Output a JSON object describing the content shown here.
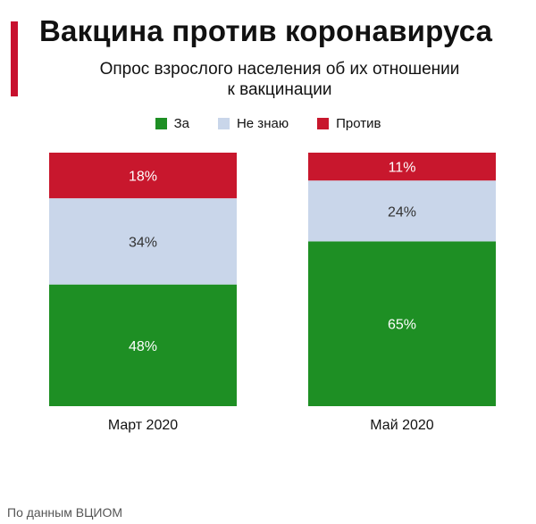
{
  "title": "Вакцина против коронавируса",
  "subtitle_lines": [
    "Опрос взрослого населения об их отношении",
    "к вакцинации"
  ],
  "legend": [
    {
      "label": "За",
      "color": "#1e8f24"
    },
    {
      "label": "Не знаю",
      "color": "#c9d6ea"
    },
    {
      "label": "Против",
      "color": "#c8172d"
    }
  ],
  "source": "По данным ВЦИОМ",
  "chart_data": {
    "type": "bar",
    "stacked": true,
    "categories": [
      "Март 2020",
      "Май 2020"
    ],
    "series": [
      {
        "name": "За",
        "values": [
          48,
          65
        ],
        "labels": [
          "48%",
          "65%"
        ],
        "color": "#1e8f24"
      },
      {
        "name": "Не знаю",
        "values": [
          34,
          24
        ],
        "labels": [
          "34%",
          "24%"
        ],
        "color": "#c9d6ea"
      },
      {
        "name": "Против",
        "values": [
          18,
          11
        ],
        "labels": [
          "18%",
          "11%"
        ],
        "color": "#c8172d"
      }
    ],
    "ylim": [
      0,
      100
    ],
    "grid": false,
    "legend_position": "top"
  }
}
